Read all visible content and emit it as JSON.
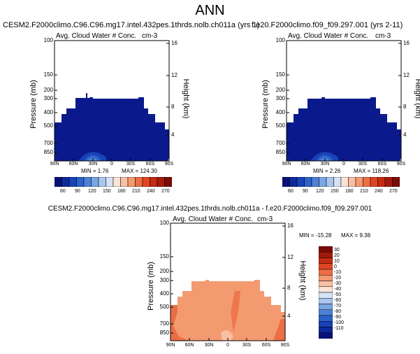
{
  "page_title": "ANN",
  "chart_data": [
    {
      "type": "heatmap",
      "title": "CESM2.F2000climo.C96.C96.mg17.intel.432pes.1thrds.nolb.ch011a (yrs 1)",
      "left_label": "Avg. Cloud Water # Conc.",
      "right_label": "cm-3",
      "xlabel": "",
      "ylabel": "Pressure (mb)",
      "ylabel_right": "Height (km)",
      "x_ticks": [
        "90N",
        "60N",
        "30N",
        "0",
        "30S",
        "60S",
        "90S"
      ],
      "y_ticks": [
        "100",
        "150",
        "200",
        "300",
        "400",
        "500",
        "700",
        "850"
      ],
      "y_right_ticks": [
        "16",
        "12",
        "8",
        "4"
      ],
      "min_text": "MIN = 1.76",
      "max_text": "MAX = 124.30",
      "colorbar_labels": [
        "60",
        "90",
        "120",
        "150",
        "180",
        "210",
        "240",
        "270"
      ]
    },
    {
      "type": "heatmap",
      "title": "f.e20.F2000climo.f09_f09.297.001 (yrs 2-11)",
      "left_label": "Avg. Cloud Water # Conc.",
      "right_label": "cm-3",
      "xlabel": "",
      "ylabel": "Pressure (mb)",
      "ylabel_right": "Height (km)",
      "x_ticks": [
        "90N",
        "60N",
        "30N",
        "0",
        "30S",
        "60S",
        "90S"
      ],
      "y_ticks": [
        "100",
        "150",
        "200",
        "300",
        "400",
        "500",
        "700",
        "850"
      ],
      "y_right_ticks": [
        "16",
        "12",
        "8",
        "4"
      ],
      "min_text": "MIN = 2.26",
      "max_text": "MAX = 118.26",
      "colorbar_labels": [
        "60",
        "90",
        "120",
        "150",
        "180",
        "210",
        "240",
        "270"
      ]
    },
    {
      "type": "heatmap",
      "title": "CESM2.F2000climo.C96.C96.mg17.intel.432pes.1thrds.nolb.ch011a - f.e20.F2000climo.f09_f09.297.001",
      "left_label": "Avg. Cloud Water # Conc.",
      "right_label": "cm-3",
      "xlabel": "",
      "ylabel": "Pressure (mb)",
      "ylabel_right": "Height (km)",
      "x_ticks": [
        "90N",
        "60N",
        "30N",
        "0",
        "30S",
        "60S",
        "90S"
      ],
      "y_ticks": [
        "100",
        "150",
        "200",
        "300",
        "400",
        "500",
        "700",
        "850"
      ],
      "y_right_ticks": [
        "16",
        "12",
        "8",
        "4"
      ],
      "min_text": "MIN = -15.28",
      "max_text": "MAX = 9.38",
      "colorbar_labels": [
        "30",
        "20",
        "10",
        "0",
        "-10",
        "-20",
        "-30",
        "-40",
        "-50",
        "-60",
        "-70",
        "-80",
        "-90",
        "-100",
        "-110"
      ]
    }
  ],
  "colors": {
    "seq_scale": [
      "#08107a",
      "#0d2a9b",
      "#1842b5",
      "#2c62c9",
      "#4c82d6",
      "#7aa6e2",
      "#a9c6ee",
      "#d4e2f4",
      "#fbe3d6",
      "#f8bfa3",
      "#f39a70",
      "#ec6e45",
      "#df4524",
      "#c52a12",
      "#a31a0c",
      "#7d0a06"
    ],
    "diff_scale": [
      "#7d0a06",
      "#a31a0c",
      "#c52a12",
      "#df4524",
      "#ec6e45",
      "#f39a70",
      "#f8bfa3",
      "#fbe3d6",
      "#d4e2f4",
      "#a9c6ee",
      "#7aa6e2",
      "#4c82d6",
      "#2c62c9",
      "#1842b5",
      "#0d2a9b",
      "#08107a"
    ],
    "field_dark_blue": "#0a1a8c",
    "field_orange": "#f39a70",
    "field_red_orange": "#ec6e45"
  }
}
